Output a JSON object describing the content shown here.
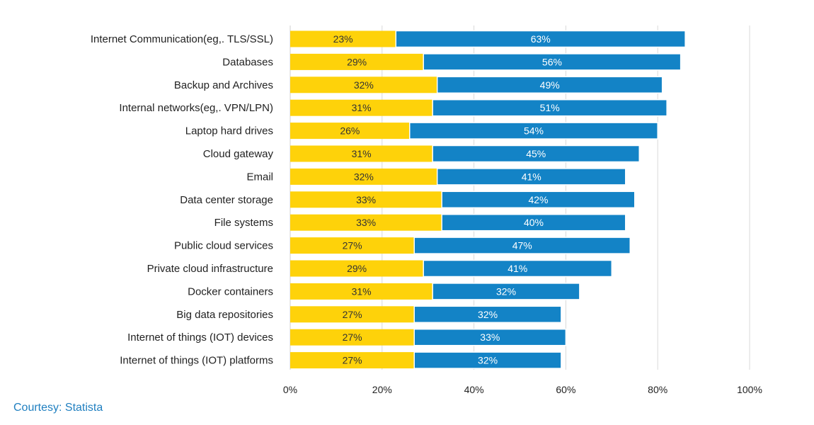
{
  "chart_data": {
    "type": "bar",
    "orientation": "horizontal",
    "stacked": true,
    "categories": [
      "Internet Communication(eg,. TLS/SSL)",
      "Databases",
      "Backup and Archives",
      "Internal networks(eg,. VPN/LPN)",
      "Laptop hard drives",
      "Cloud gateway",
      "Email",
      "Data center storage",
      "File systems",
      "Public cloud services",
      "Private cloud infrastructure",
      "Docker containers",
      "Big data repositories",
      "Internet of things (IOT) devices",
      "Internet of things (IOT) platforms"
    ],
    "series": [
      {
        "name": "Series 1",
        "color": "#fed20a",
        "label_color": "#333333",
        "values": [
          23,
          29,
          32,
          31,
          26,
          31,
          32,
          33,
          33,
          27,
          29,
          31,
          27,
          27,
          27
        ],
        "labels": [
          "23%",
          "29%",
          "32%",
          "31%",
          "26%",
          "31%",
          "32%",
          "33%",
          "33%",
          "27%",
          "29%",
          "31%",
          "27%",
          "27%",
          "27%"
        ]
      },
      {
        "name": "Series 2",
        "color": "#1383c6",
        "label_color": "#ffffff",
        "values": [
          63,
          56,
          49,
          51,
          54,
          45,
          41,
          42,
          40,
          47,
          41,
          32,
          32,
          33,
          32
        ],
        "labels": [
          "63%",
          "56%",
          "49%",
          "51%",
          "54%",
          "45%",
          "41%",
          "42%",
          "40%",
          "47%",
          "41%",
          "32%",
          "32%",
          "33%",
          "32%"
        ]
      }
    ],
    "xlim": [
      0,
      100
    ],
    "xticks": [
      0,
      20,
      40,
      60,
      80,
      100
    ],
    "xtick_labels": [
      "0%",
      "20%",
      "40%",
      "60%",
      "80%",
      "100%"
    ],
    "grid": true,
    "title": "",
    "xlabel": "",
    "ylabel": ""
  },
  "footer": {
    "credit": "Courtesy: Statista"
  }
}
